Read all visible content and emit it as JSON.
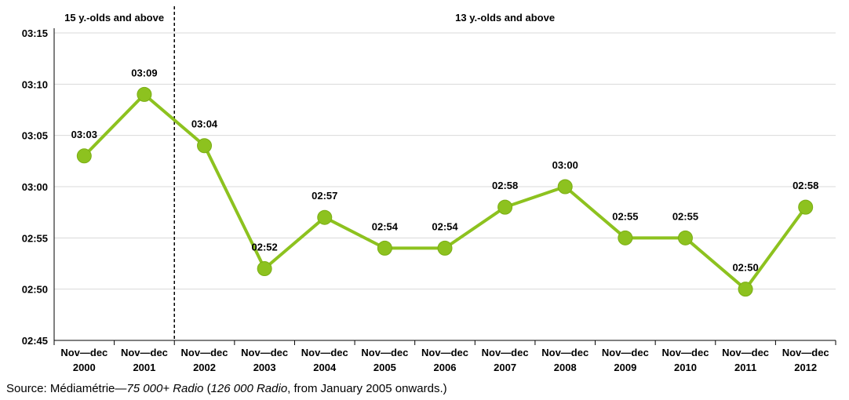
{
  "chart_data": {
    "type": "line",
    "title": "",
    "xlabel": "",
    "ylabel": "",
    "categories": [
      [
        "Nov—dec",
        "2000"
      ],
      [
        "Nov—dec",
        "2001"
      ],
      [
        "Nov—dec",
        "2002"
      ],
      [
        "Nov—dec",
        "2003"
      ],
      [
        "Nov—dec",
        "2004"
      ],
      [
        "Nov—dec",
        "2005"
      ],
      [
        "Nov—dec",
        "2006"
      ],
      [
        "Nov—dec",
        "2007"
      ],
      [
        "Nov—dec",
        "2008"
      ],
      [
        "Nov—dec",
        "2009"
      ],
      [
        "Nov—dec",
        "2010"
      ],
      [
        "Nov—dec",
        "2011"
      ],
      [
        "Nov—dec",
        "2012"
      ]
    ],
    "series": [
      {
        "values": [
          "03:03",
          "03:09",
          "03:04",
          "02:52",
          "02:57",
          "02:54",
          "02:54",
          "02:58",
          "03:00",
          "02:55",
          "02:55",
          "02:50",
          "02:58"
        ],
        "color": "#8DC21F"
      }
    ],
    "y_ticks": [
      "02:45",
      "02:50",
      "02:55",
      "03:00",
      "03:05",
      "03:10",
      "03:15"
    ],
    "ylim": [
      "02:45",
      "03:15"
    ],
    "grid": "horizontal",
    "segments": [
      {
        "label": "15 y.-olds and above",
        "from_index": 0,
        "to_index": 1
      },
      {
        "label": "13 y.-olds and above",
        "from_index": 2,
        "to_index": 12
      }
    ],
    "colors": {
      "line": "#8DC21F",
      "marker": "#8DC21F",
      "marker_edge": "#7AAE14",
      "grid": "#D9D9D9"
    }
  },
  "source_note": {
    "prefix": "Source: Médiamétrie—",
    "italic1": "75  000+ Radio",
    "middle": " (",
    "italic2": "126 000 Radio",
    "suffix": ", from January 2005 onwards.)"
  }
}
